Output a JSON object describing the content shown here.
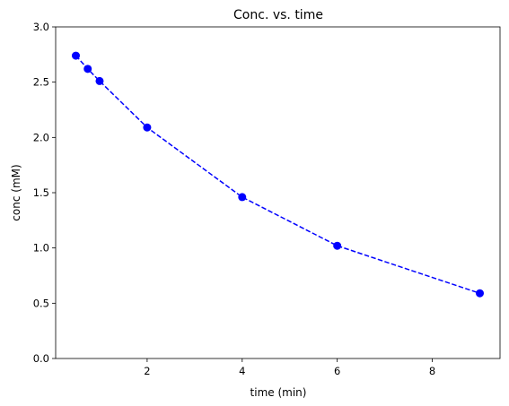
{
  "chart_data": {
    "type": "line",
    "title": "Conc. vs. time",
    "xlabel": "time (min)",
    "ylabel": "conc (mM)",
    "xlim": [
      0.075,
      9.425
    ],
    "ylim": [
      0,
      3.0
    ],
    "xticks": [
      2,
      4,
      6,
      8
    ],
    "xtick_labels": [
      "2",
      "4",
      "6",
      "8"
    ],
    "yticks": [
      0,
      0.5,
      1.0,
      1.5,
      2.0,
      2.5,
      3.0
    ],
    "ytick_labels": [
      "0.0",
      "0.5",
      "1.0",
      "1.5",
      "2.0",
      "2.5",
      "3.0"
    ],
    "grid": false,
    "series": [
      {
        "x": [
          0.5,
          0.75,
          1,
          2,
          4,
          6,
          9
        ],
        "y": [
          2.74,
          2.62,
          2.51,
          2.09,
          1.46,
          1.02,
          0.59
        ],
        "color": "#0000ff",
        "line_style": "dashed",
        "marker": "circle"
      }
    ]
  }
}
